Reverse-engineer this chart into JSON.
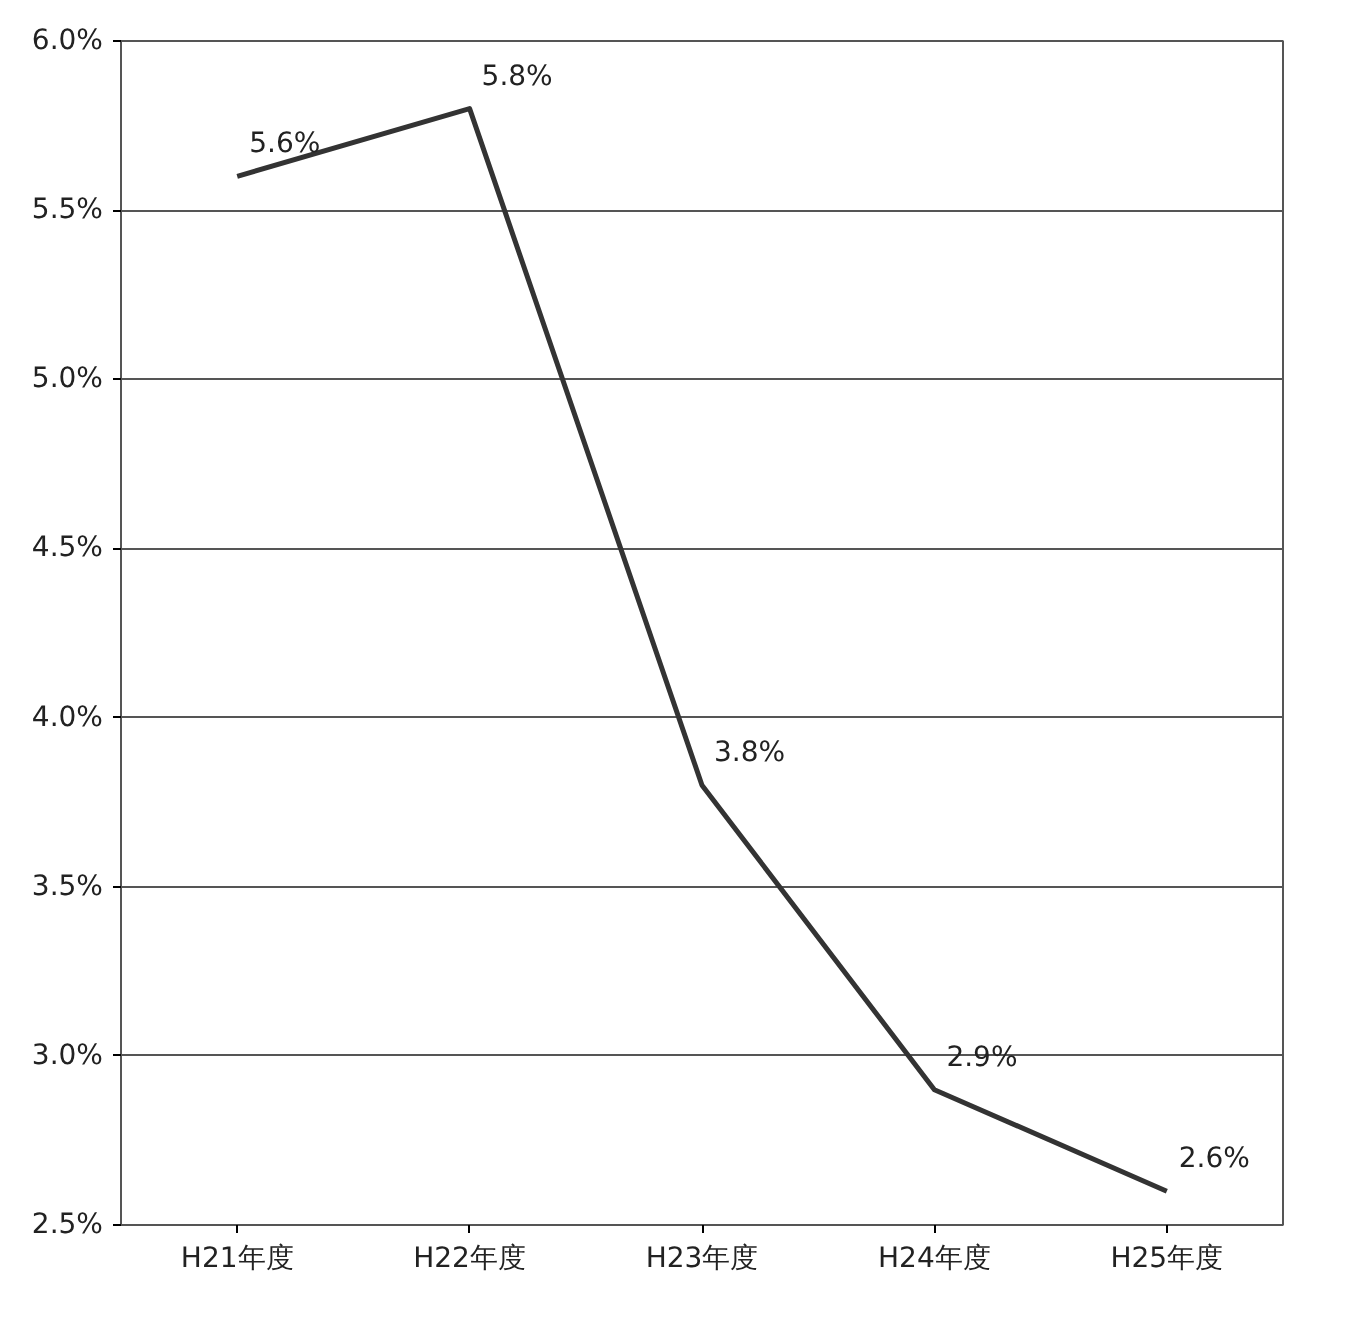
{
  "chart_data": {
    "type": "line",
    "categories": [
      "H21年度",
      "H22年度",
      "H23年度",
      "H24年度",
      "H25年度"
    ],
    "series": [
      {
        "color": "#333333",
        "values": [
          5.6,
          5.8,
          3.8,
          2.9,
          2.6
        ],
        "value_labels": [
          "5.6%",
          "5.8%",
          "3.8%",
          "2.9%",
          "2.6%"
        ]
      }
    ],
    "ylim": [
      2.5,
      6.0
    ],
    "yticks": [
      {
        "value": 2.5,
        "label": "2.5%"
      },
      {
        "value": 3.0,
        "label": "3.0%"
      },
      {
        "value": 3.5,
        "label": "3.5%"
      },
      {
        "value": 4.0,
        "label": "4.0%"
      },
      {
        "value": 4.5,
        "label": "4.5%"
      },
      {
        "value": 5.0,
        "label": "5.0%"
      },
      {
        "value": 5.5,
        "label": "5.5%"
      },
      {
        "value": 6.0,
        "label": "6.0%"
      }
    ],
    "grid": "y",
    "marker": "none",
    "line_style": "solid"
  }
}
